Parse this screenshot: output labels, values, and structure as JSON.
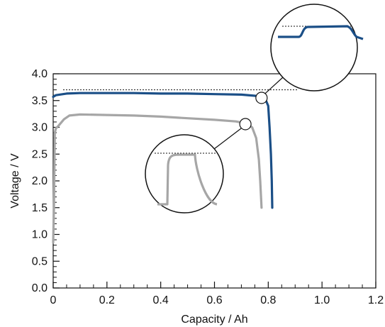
{
  "chart_data": {
    "type": "line",
    "xlabel": "Capacity / Ah",
    "ylabel": "Voltage / V",
    "xlim": [
      0,
      1.2
    ],
    "ylim": [
      0,
      4.0
    ],
    "x_ticks": [
      "0",
      "0.2",
      "0.4",
      "0.6",
      "0.8",
      "1.0",
      "1.2"
    ],
    "y_ticks": [
      "0.0",
      "0.5",
      "1.0",
      "1.5",
      "2.0",
      "2.5",
      "3.0",
      "3.5",
      "4.0"
    ],
    "grid": false,
    "series": [
      {
        "color": "#1b4f87",
        "points": [
          [
            0.0,
            3.57
          ],
          [
            0.01,
            3.6
          ],
          [
            0.05,
            3.63
          ],
          [
            0.1,
            3.64
          ],
          [
            0.2,
            3.64
          ],
          [
            0.3,
            3.64
          ],
          [
            0.4,
            3.63
          ],
          [
            0.5,
            3.63
          ],
          [
            0.6,
            3.62
          ],
          [
            0.7,
            3.61
          ],
          [
            0.75,
            3.59
          ],
          [
            0.78,
            3.57
          ],
          [
            0.79,
            3.52
          ],
          [
            0.8,
            3.4
          ],
          [
            0.805,
            3.0
          ],
          [
            0.81,
            2.5
          ],
          [
            0.813,
            2.0
          ],
          [
            0.815,
            1.5
          ]
        ],
        "reference_voltage": 3.7,
        "magnifier_anchor": [
          0.775,
          3.55
        ]
      },
      {
        "color": "#a6a6a6",
        "points": [
          [
            0.0,
            0.85
          ],
          [
            0.003,
            1.5
          ],
          [
            0.006,
            2.9
          ],
          [
            0.01,
            2.98
          ],
          [
            0.02,
            3.03
          ],
          [
            0.04,
            3.15
          ],
          [
            0.06,
            3.22
          ],
          [
            0.1,
            3.24
          ],
          [
            0.2,
            3.23
          ],
          [
            0.3,
            3.22
          ],
          [
            0.4,
            3.2
          ],
          [
            0.5,
            3.17
          ],
          [
            0.6,
            3.14
          ],
          [
            0.68,
            3.11
          ],
          [
            0.72,
            3.07
          ],
          [
            0.74,
            3.0
          ],
          [
            0.755,
            2.8
          ],
          [
            0.765,
            2.4
          ],
          [
            0.77,
            2.0
          ],
          [
            0.775,
            1.5
          ]
        ],
        "magnifier_anchor": [
          0.715,
          3.06
        ]
      }
    ]
  }
}
